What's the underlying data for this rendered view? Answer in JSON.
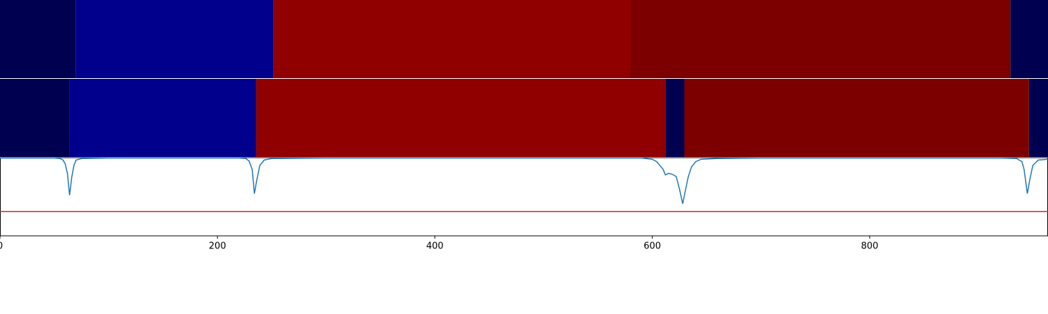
{
  "chart_data": [
    {
      "type": "strips",
      "xlim": [
        0,
        964
      ],
      "rows": [
        {
          "segments": [
            {
              "start": 0,
              "end": 69.5,
              "color": "#000050"
            },
            {
              "start": 69.5,
              "end": 251.5,
              "color": "#00008c"
            },
            {
              "start": 251.5,
              "end": 580,
              "color": "#900000"
            },
            {
              "start": 580,
              "end": 929.5,
              "color": "#7c0000"
            },
            {
              "start": 929.5,
              "end": 964,
              "color": "#000050"
            }
          ]
        },
        {
          "segments": [
            {
              "start": 0,
              "end": 64,
              "color": "#000050"
            },
            {
              "start": 64,
              "end": 235.5,
              "color": "#00008c"
            },
            {
              "start": 235.5,
              "end": 612,
              "color": "#900000"
            },
            {
              "start": 612,
              "end": 629.5,
              "color": "#000050"
            },
            {
              "start": 629.5,
              "end": 946.5,
              "color": "#7c0000"
            },
            {
              "start": 946.5,
              "end": 964,
              "color": "#000050"
            }
          ]
        }
      ]
    },
    {
      "type": "line",
      "xlim": [
        0,
        964
      ],
      "ylim": [
        0,
        1
      ],
      "xticks": [
        0,
        200,
        400,
        600,
        800
      ],
      "threshold": 0.31,
      "threshold_color": "#e41a1c",
      "series": [
        {
          "color": "#1f77b4",
          "x": [
            0,
            50,
            55,
            58,
            60,
            62,
            64,
            66,
            68,
            70,
            75,
            100,
            200,
            220,
            226,
            229,
            232,
            234,
            236,
            239,
            243,
            250,
            300,
            400,
            500,
            590,
            600,
            604,
            607,
            610,
            612,
            615,
            618,
            622,
            625,
            628,
            630,
            633,
            636,
            640,
            645,
            660,
            700,
            800,
            920,
            935,
            940,
            942,
            945,
            947,
            950,
            955,
            964
          ],
          "values": [
            0.995,
            0.995,
            0.99,
            0.97,
            0.92,
            0.8,
            0.52,
            0.75,
            0.9,
            0.97,
            0.99,
            0.995,
            0.995,
            0.995,
            0.99,
            0.96,
            0.85,
            0.54,
            0.7,
            0.9,
            0.97,
            0.99,
            0.995,
            0.995,
            0.995,
            0.995,
            0.98,
            0.95,
            0.9,
            0.85,
            0.78,
            0.8,
            0.79,
            0.76,
            0.6,
            0.41,
            0.55,
            0.75,
            0.88,
            0.95,
            0.98,
            0.99,
            0.995,
            0.995,
            0.995,
            0.99,
            0.95,
            0.85,
            0.54,
            0.7,
            0.9,
            0.97,
            0.98
          ]
        }
      ]
    }
  ]
}
